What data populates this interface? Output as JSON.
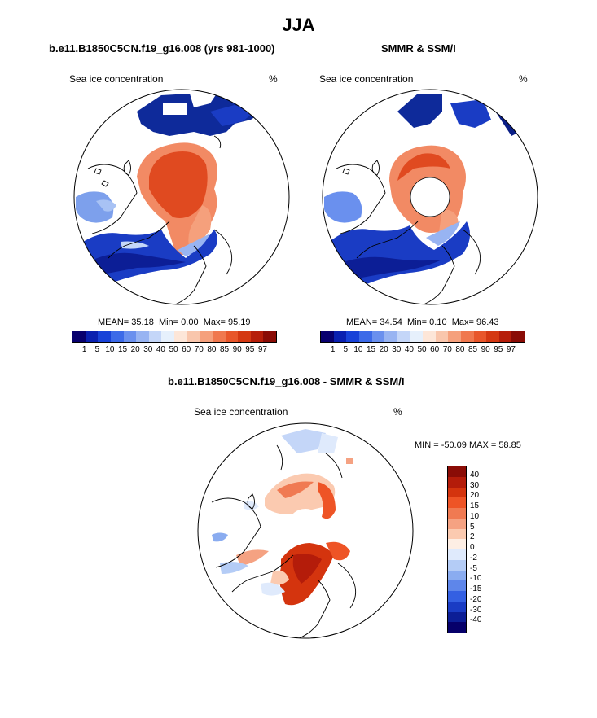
{
  "figure_title": "JJA",
  "panels": {
    "model": {
      "title": "b.e11.B1850C5CN.f19_g16.008 (yrs 981-1000)",
      "field_label": "Sea ice concentration",
      "units": "%",
      "stats": {
        "mean_label": "MEAN=",
        "mean": "35.18",
        "min_label": "Min=",
        "min": "0.00",
        "max_label": "Max=",
        "max": "95.19"
      }
    },
    "obs": {
      "title": "SMMR & SSM/I",
      "field_label": "Sea ice concentration",
      "units": "%",
      "stats": {
        "mean_label": "MEAN=",
        "mean": "34.54",
        "min_label": "Min=",
        "min": "0.10",
        "max_label": "Max=",
        "max": "96.43"
      }
    },
    "diff": {
      "title": "b.e11.B1850C5CN.f19_g16.008 - SMMR & SSM/I",
      "field_label": "Sea ice concentration",
      "units": "%",
      "range_text": "MIN = -50.09 MAX =  58.85"
    }
  },
  "colorbar": {
    "colors": [
      "#08006e",
      "#0a20b0",
      "#1842d8",
      "#3c6ae8",
      "#6a90ee",
      "#98b4f2",
      "#c4d6f8",
      "#e6f0fc",
      "#fde6d8",
      "#f9c6ac",
      "#f5a07c",
      "#f0784e",
      "#e8562a",
      "#d43812",
      "#b61e0a",
      "#8a0c06"
    ],
    "ticks": [
      "1",
      "5",
      "10",
      "15",
      "20",
      "30",
      "40",
      "50",
      "60",
      "70",
      "80",
      "85",
      "90",
      "95",
      "97"
    ]
  },
  "diff_colorbar": {
    "colors": [
      "#8a0c06",
      "#b41c0a",
      "#d4340e",
      "#ee5426",
      "#f07a52",
      "#f5a282",
      "#fbcab0",
      "#fdeee4",
      "#dfeafc",
      "#b4ccf6",
      "#8aacf0",
      "#5e86ea",
      "#3460e2",
      "#1a3cc4",
      "#0c1e96",
      "#06006a"
    ],
    "ticks": [
      "40",
      "30",
      "20",
      "15",
      "10",
      "5",
      "2",
      "0",
      "-2",
      "-5",
      "-10",
      "-15",
      "-20",
      "-30",
      "-40"
    ]
  }
}
